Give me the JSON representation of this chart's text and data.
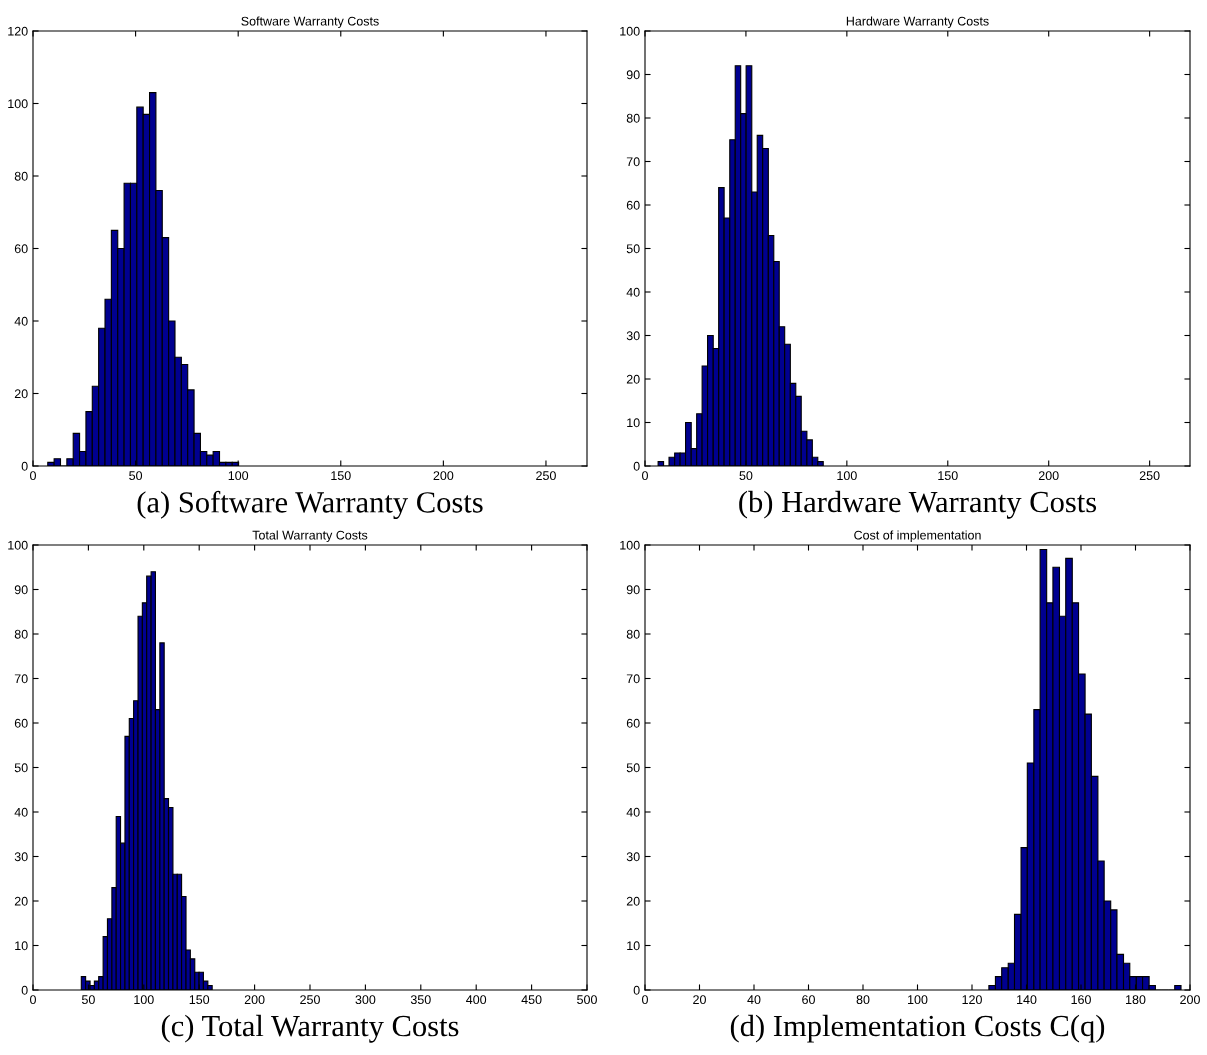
{
  "chart_data": [
    {
      "type": "histogram",
      "title": "Software Warranty Costs",
      "xlabel": "(a) Software Warranty Costs",
      "color": "#000090",
      "bins": [
        7.2,
        10.3,
        13.4,
        16.5,
        19.6,
        22.7,
        25.8,
        28.9,
        32.0,
        35.1,
        38.2,
        41.3,
        44.4,
        47.5,
        50.6,
        53.7,
        56.8,
        59.9,
        63.0,
        66.1,
        69.2,
        72.3,
        75.4,
        78.5,
        81.6,
        84.7,
        87.8,
        90.9,
        94.0,
        97.1,
        100.2
      ],
      "values": [
        1,
        2,
        0,
        2,
        9,
        4,
        15,
        22,
        38,
        46,
        65,
        60,
        78,
        78,
        99,
        97,
        103,
        76,
        63,
        40,
        30,
        28,
        21,
        9,
        4,
        3,
        4,
        1,
        1,
        1
      ],
      "xlim": [
        0,
        270
      ],
      "xticks": [
        0,
        50,
        100,
        150,
        200,
        250
      ],
      "ylim": [
        0,
        120
      ],
      "yticks": [
        0,
        20,
        40,
        60,
        80,
        100,
        120
      ]
    },
    {
      "type": "histogram",
      "title": "Hardware Warranty Costs",
      "xlabel": "(b) Hardware Warranty Costs",
      "color": "#000090",
      "bins": [
        6.5,
        9.2,
        11.9,
        14.7,
        17.4,
        20.1,
        22.9,
        25.6,
        28.3,
        31.0,
        33.8,
        36.5,
        39.2,
        42.0,
        44.7,
        47.4,
        50.1,
        52.9,
        55.6,
        58.3,
        61.1,
        63.8,
        66.5,
        69.2,
        72.0,
        74.7,
        77.4,
        80.2,
        82.9,
        85.6,
        88.3
      ],
      "values": [
        1,
        0,
        2,
        3,
        3,
        10,
        4,
        12,
        23,
        30,
        27,
        64,
        57,
        75,
        92,
        81,
        92,
        63,
        76,
        73,
        53,
        47,
        32,
        28,
        19,
        16,
        8,
        6,
        2,
        1
      ],
      "xlim": [
        0,
        270
      ],
      "xticks": [
        0,
        50,
        100,
        150,
        200,
        250
      ],
      "ylim": [
        0,
        100
      ],
      "yticks": [
        0,
        10,
        20,
        30,
        40,
        50,
        60,
        70,
        80,
        90,
        100
      ]
    },
    {
      "type": "histogram",
      "title": "Total Warranty Costs",
      "xlabel": "(c) Total Warranty Costs",
      "color": "#000090",
      "bins": [
        43.6,
        47.5,
        51.5,
        55.4,
        59.3,
        63.3,
        67.2,
        71.2,
        75.1,
        79.0,
        83.0,
        86.9,
        90.8,
        94.8,
        98.7,
        102.6,
        106.6,
        110.5,
        114.5,
        118.4,
        122.3,
        126.3,
        130.2,
        134.1,
        138.1,
        142.0,
        146.0,
        149.9,
        153.8,
        157.8,
        161.7
      ],
      "values": [
        3,
        2,
        1,
        2,
        3,
        12,
        16,
        23,
        39,
        33,
        57,
        61,
        65,
        84,
        87,
        93,
        94,
        63,
        78,
        43,
        41,
        26,
        26,
        21,
        9,
        7,
        4,
        4,
        2,
        1
      ],
      "xlim": [
        0,
        500
      ],
      "xticks": [
        0,
        50,
        100,
        150,
        200,
        250,
        300,
        350,
        400,
        450,
        500
      ],
      "ylim": [
        0,
        100
      ],
      "yticks": [
        0,
        10,
        20,
        30,
        40,
        50,
        60,
        70,
        80,
        90,
        100
      ]
    },
    {
      "type": "histogram",
      "title": "Cost of implementation",
      "xlabel": "(d) Implementation Costs C(q)",
      "color": "#000090",
      "bins": [
        126.2,
        128.6,
        130.9,
        133.3,
        135.6,
        138.0,
        140.3,
        142.7,
        145.0,
        147.4,
        149.7,
        152.1,
        154.4,
        156.8,
        159.1,
        161.5,
        163.8,
        166.2,
        168.5,
        170.9,
        173.2,
        175.6,
        177.9,
        180.3,
        182.6,
        185.0,
        187.3,
        189.7,
        192.0,
        194.4,
        196.7
      ],
      "values": [
        1,
        3,
        5,
        6,
        17,
        32,
        51,
        63,
        99,
        87,
        95,
        84,
        97,
        87,
        71,
        62,
        48,
        29,
        20,
        18,
        8,
        6,
        3,
        3,
        3,
        1,
        0,
        0,
        0,
        1
      ],
      "xlim": [
        0,
        200
      ],
      "xticks": [
        0,
        20,
        40,
        60,
        80,
        100,
        120,
        140,
        160,
        180,
        200
      ],
      "ylim": [
        0,
        100
      ],
      "yticks": [
        0,
        10,
        20,
        30,
        40,
        50,
        60,
        70,
        80,
        90,
        100
      ]
    }
  ]
}
